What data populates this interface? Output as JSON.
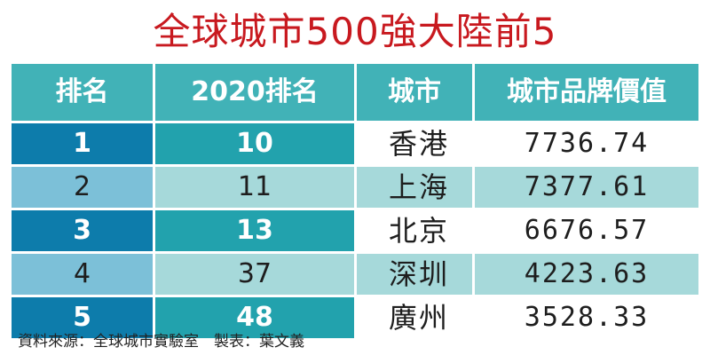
{
  "title": "全球城市500強大陸前5",
  "table": {
    "headers": [
      "排名",
      "2020排名",
      "城市",
      "城市品牌價值"
    ],
    "rows": [
      {
        "rank": "1",
        "rank_2020": "10",
        "city": "香港",
        "value": "7736.74"
      },
      {
        "rank": "2",
        "rank_2020": "11",
        "city": "上海",
        "value": "7377.61"
      },
      {
        "rank": "3",
        "rank_2020": "13",
        "city": "北京",
        "value": "6676.57"
      },
      {
        "rank": "4",
        "rank_2020": "37",
        "city": "深圳",
        "value": "4223.63"
      },
      {
        "rank": "5",
        "rank_2020": "48",
        "city": "廣州",
        "value": "3528.33"
      }
    ]
  },
  "footer": "資料來源：全球城市實驗室　製表：葉文義",
  "colors": {
    "title": "#c8191f",
    "header_bg": "#41b2b7",
    "rank_dark": "#0d7cab",
    "rank_light": "#7cc0d8",
    "teal_dark": "#22a2ad",
    "teal_light": "#a6d9da"
  }
}
